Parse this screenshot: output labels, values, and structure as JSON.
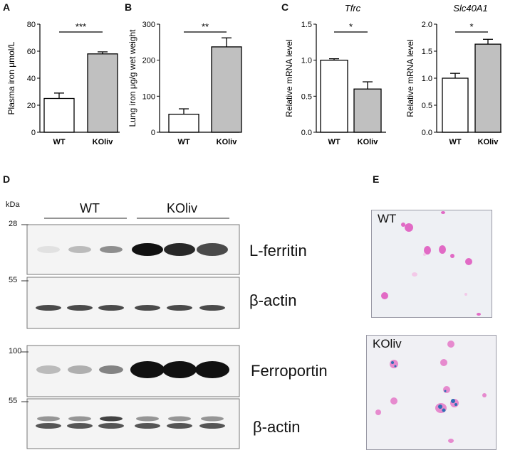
{
  "panels": {
    "A": "A",
    "B": "B",
    "C": "C",
    "D": "D",
    "E": "E"
  },
  "chart_data": [
    {
      "type": "bar",
      "panel": "A",
      "categories": [
        "WT",
        "KOliv"
      ],
      "values": [
        25,
        58
      ],
      "errors": [
        4,
        1.5
      ],
      "ylabel": "Plasma iron μmol/L",
      "ylim": [
        0,
        80
      ],
      "yticks": [
        "0",
        "20",
        "40",
        "60",
        "80"
      ],
      "significance": "***",
      "bar_fills": [
        "#ffffff",
        "#c0c0c0"
      ]
    },
    {
      "type": "bar",
      "panel": "B",
      "categories": [
        "WT",
        "KOliv"
      ],
      "values": [
        50,
        237
      ],
      "errors": [
        15,
        25
      ],
      "ylabel": "Lung iron μg/g wet weight",
      "ylim": [
        0,
        300
      ],
      "yticks": [
        "0",
        "100",
        "200",
        "300"
      ],
      "significance": "**",
      "bar_fills": [
        "#ffffff",
        "#c0c0c0"
      ]
    },
    {
      "type": "bar",
      "panel": "C",
      "title": "Tfrc",
      "categories": [
        "WT",
        "KOliv"
      ],
      "values": [
        1.0,
        0.6
      ],
      "errors": [
        0.02,
        0.1
      ],
      "ylabel": "Relative mRNA level",
      "ylim": [
        0,
        1.5
      ],
      "yticks": [
        "0.0",
        "0.5",
        "1.0",
        "1.5"
      ],
      "significance": "*",
      "bar_fills": [
        "#ffffff",
        "#c0c0c0"
      ]
    },
    {
      "type": "bar",
      "panel": "C",
      "title": "Slc40A1",
      "categories": [
        "WT",
        "KOliv"
      ],
      "values": [
        1.0,
        1.63
      ],
      "errors": [
        0.09,
        0.09
      ],
      "ylabel": "Relative mRNA level",
      "ylim": [
        0,
        2.0
      ],
      "yticks": [
        "0.0",
        "0.5",
        "1.0",
        "1.5",
        "2.0"
      ],
      "significance": "*",
      "bar_fills": [
        "#ffffff",
        "#c0c0c0"
      ]
    }
  ],
  "blot": {
    "kda_label": "kDa",
    "group_wt": "WT",
    "group_koliv": "KOliv",
    "markers": [
      "28",
      "55",
      "100",
      "55"
    ],
    "labels": [
      "L-ferritin",
      "β-actin",
      "Ferroportin",
      "β-actin"
    ],
    "lferritin_intensity": [
      0.08,
      0.25,
      0.45,
      1.0,
      0.9,
      0.75
    ],
    "ferroportin_intensity": [
      0.25,
      0.3,
      0.5,
      1.0,
      1.0,
      1.0
    ]
  },
  "micro": {
    "top_label": "WT",
    "bottom_label": "KOliv"
  }
}
